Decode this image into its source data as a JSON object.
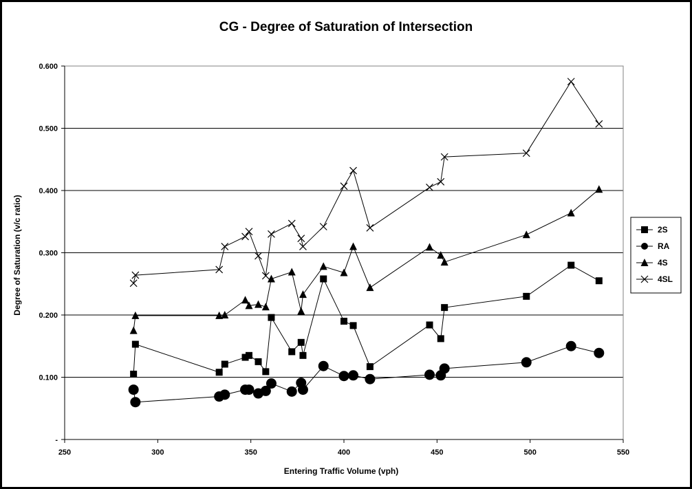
{
  "chart_data": {
    "type": "line",
    "title": "CG - Degree of Saturation of Intersection",
    "xlabel": "Entering Traffic Volume (vph)",
    "ylabel": "Degree of Saturation (v/c ratio)",
    "xlim": [
      250,
      550
    ],
    "ylim": [
      0,
      0.6
    ],
    "x_ticks": [
      "250",
      "300",
      "350",
      "400",
      "450",
      "500",
      "550"
    ],
    "y_ticks": [
      "-",
      "0.100",
      "0.200",
      "0.300",
      "0.400",
      "0.500",
      "0.600"
    ],
    "grid": "horizontal",
    "legend_position": "right",
    "series": [
      {
        "name": "2S",
        "marker": "square",
        "color": "#000000",
        "x": [
          287,
          288,
          333,
          336,
          347,
          349,
          354,
          358,
          361,
          372,
          377,
          378,
          389,
          400,
          405,
          414,
          446,
          452,
          454,
          498,
          522,
          537
        ],
        "y": [
          0.105,
          0.153,
          0.108,
          0.121,
          0.132,
          0.135,
          0.125,
          0.109,
          0.196,
          0.141,
          0.156,
          0.135,
          0.258,
          0.19,
          0.183,
          0.117,
          0.184,
          0.162,
          0.212,
          0.23,
          0.28,
          0.255
        ]
      },
      {
        "name": "RA",
        "marker": "circle",
        "color": "#000000",
        "x": [
          287,
          288,
          333,
          336,
          347,
          349,
          354,
          358,
          361,
          372,
          377,
          378,
          389,
          400,
          405,
          414,
          446,
          452,
          454,
          498,
          522,
          537
        ],
        "y": [
          0.08,
          0.06,
          0.069,
          0.072,
          0.08,
          0.08,
          0.074,
          0.078,
          0.09,
          0.077,
          0.091,
          0.08,
          0.118,
          0.102,
          0.103,
          0.097,
          0.104,
          0.103,
          0.114,
          0.124,
          0.15,
          0.139
        ]
      },
      {
        "name": "4S",
        "marker": "triangle",
        "color": "#000000",
        "x": [
          287,
          288,
          333,
          336,
          347,
          349,
          354,
          358,
          361,
          372,
          377,
          378,
          389,
          400,
          405,
          414,
          446,
          452,
          454,
          498,
          522,
          537
        ],
        "y": [
          0.175,
          0.199,
          0.199,
          0.2,
          0.224,
          0.215,
          0.217,
          0.213,
          0.258,
          0.269,
          0.206,
          0.233,
          0.278,
          0.268,
          0.31,
          0.244,
          0.309,
          0.296,
          0.285,
          0.329,
          0.364,
          0.402
        ]
      },
      {
        "name": "4SL",
        "marker": "x",
        "color": "#000000",
        "x": [
          287,
          288,
          333,
          336,
          347,
          349,
          354,
          358,
          361,
          372,
          377,
          378,
          389,
          400,
          405,
          414,
          446,
          452,
          454,
          498,
          522,
          537
        ],
        "y": [
          0.251,
          0.264,
          0.273,
          0.31,
          0.326,
          0.334,
          0.295,
          0.263,
          0.33,
          0.347,
          0.323,
          0.31,
          0.342,
          0.407,
          0.432,
          0.34,
          0.405,
          0.414,
          0.454,
          0.46,
          0.575,
          0.507
        ]
      }
    ]
  }
}
